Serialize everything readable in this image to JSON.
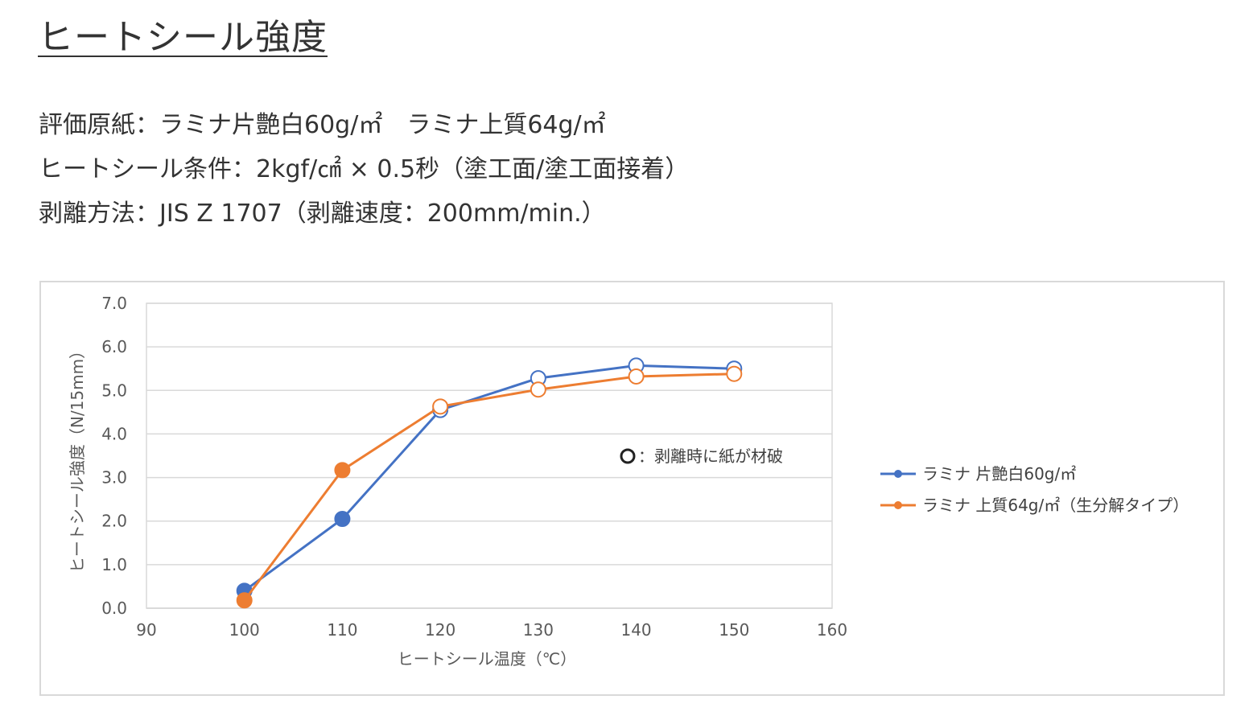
{
  "page": {
    "title": "ヒートシール強度",
    "specs": [
      "評価原紙：ラミナ片艶白60g/㎡　ラミナ上質64g/㎡",
      "ヒートシール条件：2kgf/㎠ × 0.5秒（塗工面/塗工面接着）",
      "剥離方法：JIS Z 1707（剥離速度：200mm/min.）"
    ]
  },
  "chart_data": {
    "type": "line",
    "title": "",
    "xlabel": "ヒートシール温度（℃）",
    "ylabel": "ヒートシール強度（N/15mm）",
    "xlim": [
      90,
      160
    ],
    "ylim": [
      0,
      7
    ],
    "x_ticks": [
      "90",
      "100",
      "110",
      "120",
      "130",
      "140",
      "150",
      "160"
    ],
    "y_ticks": [
      "0.0",
      "1.0",
      "2.0",
      "3.0",
      "4.0",
      "5.0",
      "6.0",
      "7.0"
    ],
    "grid": "horizontal",
    "legend_position": "right",
    "annotation": {
      "marker": "O",
      "text": "：剥離時に紙が材破"
    },
    "series": [
      {
        "name": "ラミナ 片艶白60g/㎡",
        "color": "#4472c4",
        "x": [
          100,
          110,
          120,
          130,
          140,
          150
        ],
        "y": [
          0.4,
          2.05,
          4.55,
          5.28,
          5.57,
          5.5
        ],
        "hollow": [
          false,
          false,
          true,
          true,
          true,
          true
        ]
      },
      {
        "name": "ラミナ 上質64g/㎡（生分解タイプ）",
        "color": "#ed7d31",
        "x": [
          100,
          110,
          120,
          130,
          140,
          150
        ],
        "y": [
          0.18,
          3.17,
          4.63,
          5.02,
          5.32,
          5.38
        ],
        "hollow": [
          false,
          false,
          true,
          true,
          true,
          true
        ]
      }
    ]
  }
}
